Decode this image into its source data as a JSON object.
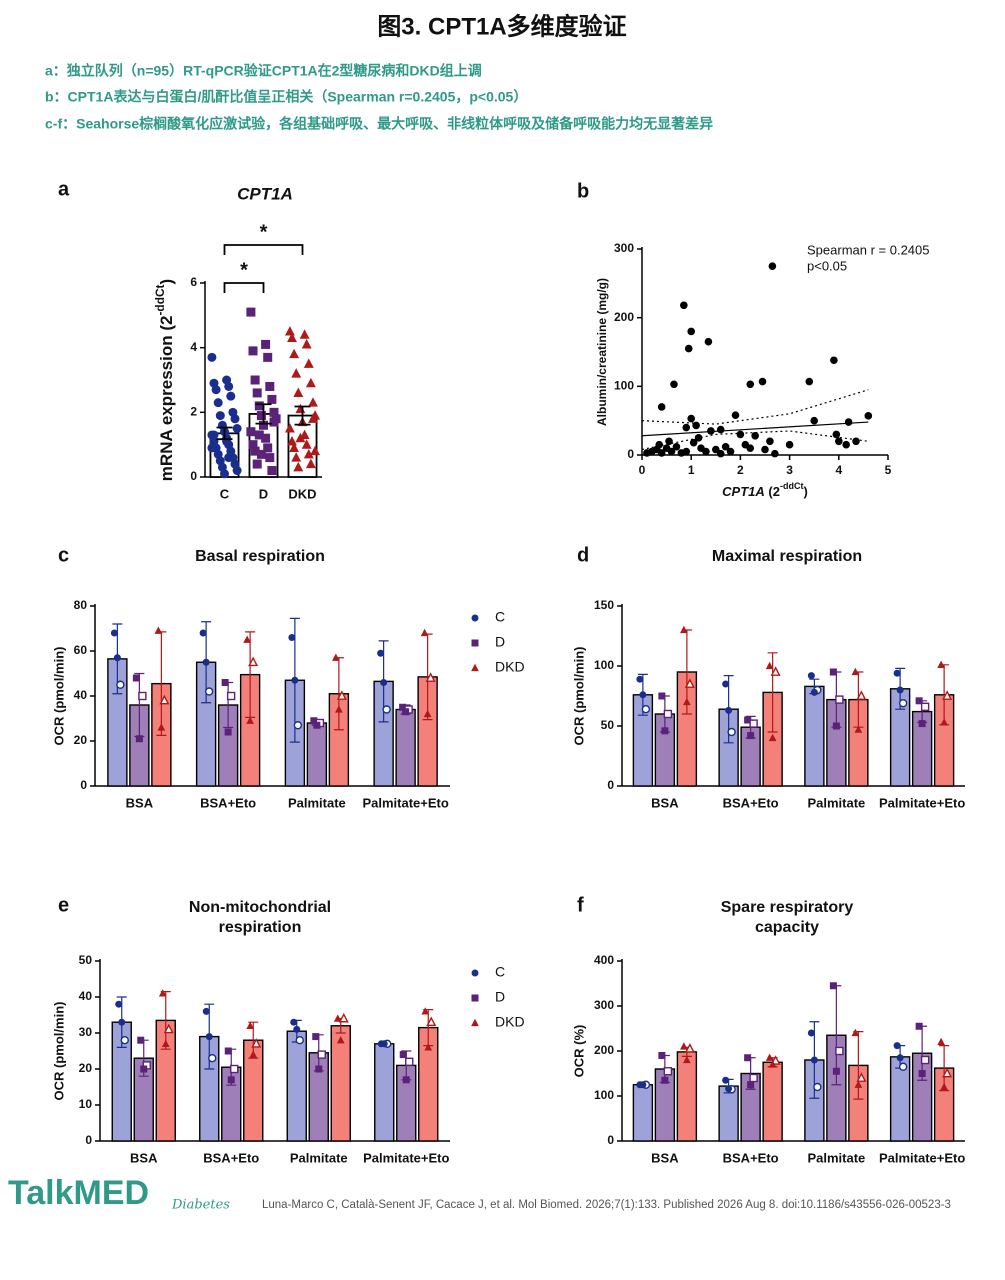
{
  "title": "图3. CPT1A多维度验证",
  "captions": [
    "a：独立队列（n=95）RT-qPCR验证CPT1A在2型糖尿病和DKD组上调",
    "b：CPT1A表达与白蛋白/肌酐比值呈正相关（Spearman r=0.2405，p<0.05）",
    "c-f：Seahorse棕榈酸氧化应激试验，各组基础呼吸、最大呼吸、非线粒体呼吸及储备呼吸能力均无显著差异"
  ],
  "chart_data": [
    {
      "type": "bar",
      "label": "a",
      "title": [
        "CPT1A"
      ],
      "ylabel": {
        "text": "mRNA expression (2",
        "sup": "-ddCt",
        "end": ")"
      },
      "categories": [
        "C",
        "D",
        "DKD"
      ],
      "values": [
        1.35,
        1.95,
        1.9
      ],
      "errors": [
        0.18,
        0.3,
        0.28
      ],
      "colors": [
        "#9da3d8",
        "#9e7fb8",
        "#f4807a"
      ],
      "point_colors": [
        "#1a2f8c",
        "#5a2278",
        "#b01919"
      ],
      "markers": [
        "circle",
        "square",
        "triangle"
      ],
      "points": [
        [
          3.7,
          3.0,
          2.9,
          2.8,
          2.7,
          2.5,
          2.3,
          2.0,
          1.9,
          1.8,
          1.6,
          1.5,
          1.4,
          1.3,
          1.2,
          1.1,
          1.0,
          0.9,
          0.8,
          0.7,
          0.6,
          0.5,
          0.4,
          0.3,
          0.2,
          0.1,
          0.9,
          1.1,
          1.3,
          0.6
        ],
        [
          5.1,
          4.1,
          3.9,
          3.7,
          3.0,
          2.8,
          2.6,
          2.4,
          2.2,
          2.0,
          1.9,
          1.8,
          1.6,
          1.4,
          1.2,
          1.0,
          0.9,
          0.8,
          0.6,
          0.4,
          0.2,
          1.3,
          1.7,
          0.7
        ],
        [
          4.5,
          4.4,
          4.3,
          4.1,
          3.8,
          3.5,
          3.2,
          2.9,
          2.6,
          2.3,
          2.1,
          1.9,
          1.7,
          1.5,
          1.3,
          1.1,
          1.0,
          0.9,
          0.7,
          0.6,
          0.4,
          0.3,
          1.8,
          1.2,
          0.8
        ]
      ],
      "annotations": [
        "*",
        "*"
      ],
      "ylim": [
        0,
        6
      ],
      "yticks": [
        0,
        2,
        4,
        6
      ]
    },
    {
      "type": "scatter",
      "label": "b",
      "ylabel": "Albumin/creatinine (mg/g)",
      "xlabel": {
        "text": "CPT1A",
        "mid": " (2",
        "sup": "-ddCt",
        "end": ")"
      },
      "annotations": [
        "Spearman r = 0.2405",
        "p<0.05"
      ],
      "x": [
        2.65,
        0.85,
        1.0,
        0.95,
        1.35,
        3.9,
        0.65,
        2.45,
        2.2,
        3.4,
        0.4,
        1.0,
        1.9,
        3.5,
        4.2,
        4.6,
        0.9,
        1.1,
        1.4,
        1.6,
        2.0,
        2.3,
        3.95,
        4.35,
        4.0,
        4.15,
        0.1,
        0.2,
        0.3,
        0.4,
        0.5,
        0.6,
        0.7,
        0.8,
        0.9,
        1.05,
        1.2,
        1.3,
        1.5,
        1.7,
        1.8,
        2.1,
        2.2,
        2.5,
        2.6,
        3.0,
        0.55,
        1.15,
        1.6,
        2.7,
        0.35
      ],
      "y": [
        275,
        218,
        180,
        155,
        165,
        138,
        103,
        107,
        103,
        107,
        70,
        53,
        58,
        50,
        48,
        57,
        40,
        43,
        35,
        37,
        30,
        28,
        30,
        20,
        20,
        15,
        3,
        5,
        8,
        3,
        10,
        5,
        12,
        3,
        5,
        18,
        10,
        5,
        8,
        12,
        5,
        15,
        10,
        8,
        20,
        15,
        20,
        25,
        2,
        2,
        15
      ],
      "fit": {
        "x": [
          0,
          4.6
        ],
        "y": [
          28,
          48
        ]
      },
      "ci_upper": {
        "x": [
          0,
          1.5,
          3,
          4.6
        ],
        "y": [
          50,
          45,
          60,
          95
        ]
      },
      "ci_lower": {
        "x": [
          0,
          1.5,
          3,
          4.6
        ],
        "y": [
          8,
          30,
          35,
          20
        ]
      },
      "color": "#000000",
      "xlim": [
        0,
        5
      ],
      "xticks": [
        0,
        1,
        2,
        3,
        4,
        5
      ],
      "ylim": [
        0,
        300
      ],
      "yticks": [
        0,
        100,
        200,
        300
      ]
    },
    {
      "type": "grouped_bar",
      "label": "c",
      "title": [
        "Basal respiration"
      ],
      "ylabel": "OCR (pmol/min)",
      "legend": true,
      "categories": [
        "BSA",
        "BSA+Eto",
        "Palmitate",
        "Palmitate+Eto"
      ],
      "ylim": [
        0,
        80
      ],
      "yticks": [
        0,
        20,
        40,
        60,
        80
      ],
      "series": [
        {
          "name": "C",
          "color": "#9da3d8",
          "point_color": "#1a2f8c",
          "marker": "circle",
          "values": [
            56.5,
            55,
            47,
            46.5
          ],
          "errors": [
            15.5,
            18,
            27.5,
            18
          ],
          "points": [
            [
              68,
              45,
              57
            ],
            [
              68,
              42,
              55
            ],
            [
              66,
              27,
              47
            ],
            [
              59,
              34,
              46
            ]
          ]
        },
        {
          "name": "D",
          "color": "#9e7fb8",
          "point_color": "#5a2278",
          "marker": "square",
          "values": [
            36,
            36,
            28,
            34
          ],
          "errors": [
            14,
            10,
            1,
            2
          ],
          "points": [
            [
              48,
              40,
              21
            ],
            [
              46,
              40,
              24
            ],
            [
              29,
              28,
              27
            ],
            [
              35,
              34,
              33
            ]
          ]
        },
        {
          "name": "DKD",
          "color": "#f4807a",
          "point_color": "#b01919",
          "marker": "triangle",
          "values": [
            45.5,
            49.5,
            41,
            48.5
          ],
          "errors": [
            23,
            19,
            16,
            19
          ],
          "points": [
            [
              69,
              38,
              26
            ],
            [
              65,
              55,
              29
            ],
            [
              57,
              40,
              34
            ],
            [
              68,
              48,
              32
            ]
          ]
        }
      ]
    },
    {
      "type": "grouped_bar",
      "label": "d",
      "title": [
        "Maximal respiration"
      ],
      "ylabel": "OCR (pmol/min)",
      "legend": false,
      "categories": [
        "BSA",
        "BSA+Eto",
        "Palmitate",
        "Palmitate+Eto"
      ],
      "ylim": [
        0,
        150
      ],
      "yticks": [
        0,
        50,
        100,
        150
      ],
      "series": [
        {
          "name": "C",
          "color": "#9da3d8",
          "point_color": "#1a2f8c",
          "marker": "circle",
          "values": [
            76,
            64,
            83,
            81
          ],
          "errors": [
            17,
            28,
            6,
            17
          ],
          "points": [
            [
              89,
              64,
              76
            ],
            [
              85,
              45,
              63
            ],
            [
              92,
              80,
              78
            ],
            [
              94,
              69,
              80
            ]
          ]
        },
        {
          "name": "D",
          "color": "#9e7fb8",
          "point_color": "#5a2278",
          "marker": "square",
          "values": [
            60,
            49,
            72,
            62
          ],
          "errors": [
            15,
            9,
            23,
            9
          ],
          "points": [
            [
              75,
              60,
              46
            ],
            [
              55,
              52,
              42
            ],
            [
              95,
              72,
              50
            ],
            [
              71,
              66,
              52
            ]
          ]
        },
        {
          "name": "DKD",
          "color": "#f4807a",
          "point_color": "#b01919",
          "marker": "triangle",
          "values": [
            95,
            78,
            72,
            76
          ],
          "errors": [
            35,
            33,
            23,
            25
          ],
          "points": [
            [
              130,
              85,
              70
            ],
            [
              100,
              95,
              40
            ],
            [
              95,
              75,
              47
            ],
            [
              101,
              75,
              53
            ]
          ]
        }
      ]
    },
    {
      "type": "grouped_bar",
      "label": "e",
      "title": [
        "Non-mitochondrial",
        "respiration"
      ],
      "ylabel": "OCR (pmol/min)",
      "legend": true,
      "categories": [
        "BSA",
        "BSA+Eto",
        "Palmitate",
        "Palmitate+Eto"
      ],
      "ylim": [
        0,
        50
      ],
      "yticks": [
        0,
        10,
        20,
        30,
        40,
        50
      ],
      "series": [
        {
          "name": "C",
          "color": "#9da3d8",
          "point_color": "#1a2f8c",
          "marker": "circle",
          "values": [
            33,
            29,
            30.5,
            27
          ],
          "errors": [
            7,
            9,
            3,
            0.5
          ],
          "points": [
            [
              38,
              28,
              33
            ],
            [
              36,
              23,
              29
            ],
            [
              33,
              28,
              31
            ],
            [
              27,
              27,
              27
            ]
          ]
        },
        {
          "name": "D",
          "color": "#9e7fb8",
          "point_color": "#5a2278",
          "marker": "square",
          "values": [
            23,
            20.5,
            24.5,
            21
          ],
          "errors": [
            5,
            5,
            5,
            4
          ],
          "points": [
            [
              28,
              21,
              20
            ],
            [
              25,
              20,
              17
            ],
            [
              29,
              24,
              20
            ],
            [
              24,
              22,
              17
            ]
          ]
        },
        {
          "name": "DKD",
          "color": "#f4807a",
          "point_color": "#b01919",
          "marker": "triangle",
          "values": [
            33.5,
            28,
            32,
            31.5
          ],
          "errors": [
            8,
            5,
            2,
            5
          ],
          "points": [
            [
              41,
              31,
              27
            ],
            [
              32,
              27,
              24
            ],
            [
              34,
              34,
              28
            ],
            [
              36,
              33,
              26
            ]
          ]
        }
      ]
    },
    {
      "type": "grouped_bar",
      "label": "f",
      "title": [
        "Spare respiratory",
        "capacity"
      ],
      "ylabel": "OCR (%)",
      "legend": false,
      "categories": [
        "BSA",
        "BSA+Eto",
        "Palmitate",
        "Palmitate+Eto"
      ],
      "ylim": [
        0,
        400
      ],
      "yticks": [
        0,
        100,
        200,
        300,
        400
      ],
      "series": [
        {
          "name": "C",
          "color": "#9da3d8",
          "point_color": "#1a2f8c",
          "marker": "circle",
          "values": [
            125,
            122,
            180,
            187
          ],
          "errors": [
            5,
            15,
            85,
            25
          ],
          "points": [
            [
              125,
              125,
              125
            ],
            [
              135,
              115,
              116
            ],
            [
              240,
              120,
              180
            ],
            [
              212,
              165,
              185
            ]
          ]
        },
        {
          "name": "D",
          "color": "#9e7fb8",
          "point_color": "#5a2278",
          "marker": "square",
          "values": [
            160,
            150,
            235,
            195
          ],
          "errors": [
            30,
            35,
            110,
            60
          ],
          "points": [
            [
              190,
              155,
              135
            ],
            [
              185,
              140,
              125
            ],
            [
              345,
              200,
              155
            ],
            [
              255,
              180,
              150
            ]
          ]
        },
        {
          "name": "DKD",
          "color": "#f4807a",
          "point_color": "#b01919",
          "marker": "triangle",
          "values": [
            198,
            175,
            168,
            162
          ],
          "errors": [
            10,
            10,
            75,
            50
          ],
          "points": [
            [
              210,
              205,
              180
            ],
            [
              185,
              178,
              170
            ],
            [
              240,
              140,
              125
            ],
            [
              220,
              150,
              120
            ]
          ]
        }
      ]
    }
  ],
  "footer": {
    "brand": "TalkMED",
    "journal": "Diabetes",
    "citation": "Luna-Marco C, Català-Senent JF, Cacace J, et al. Mol Biomed. 2026;7(1):133. Published 2026 Aug 8. doi:10.1186/s43556-026-00523-3"
  }
}
